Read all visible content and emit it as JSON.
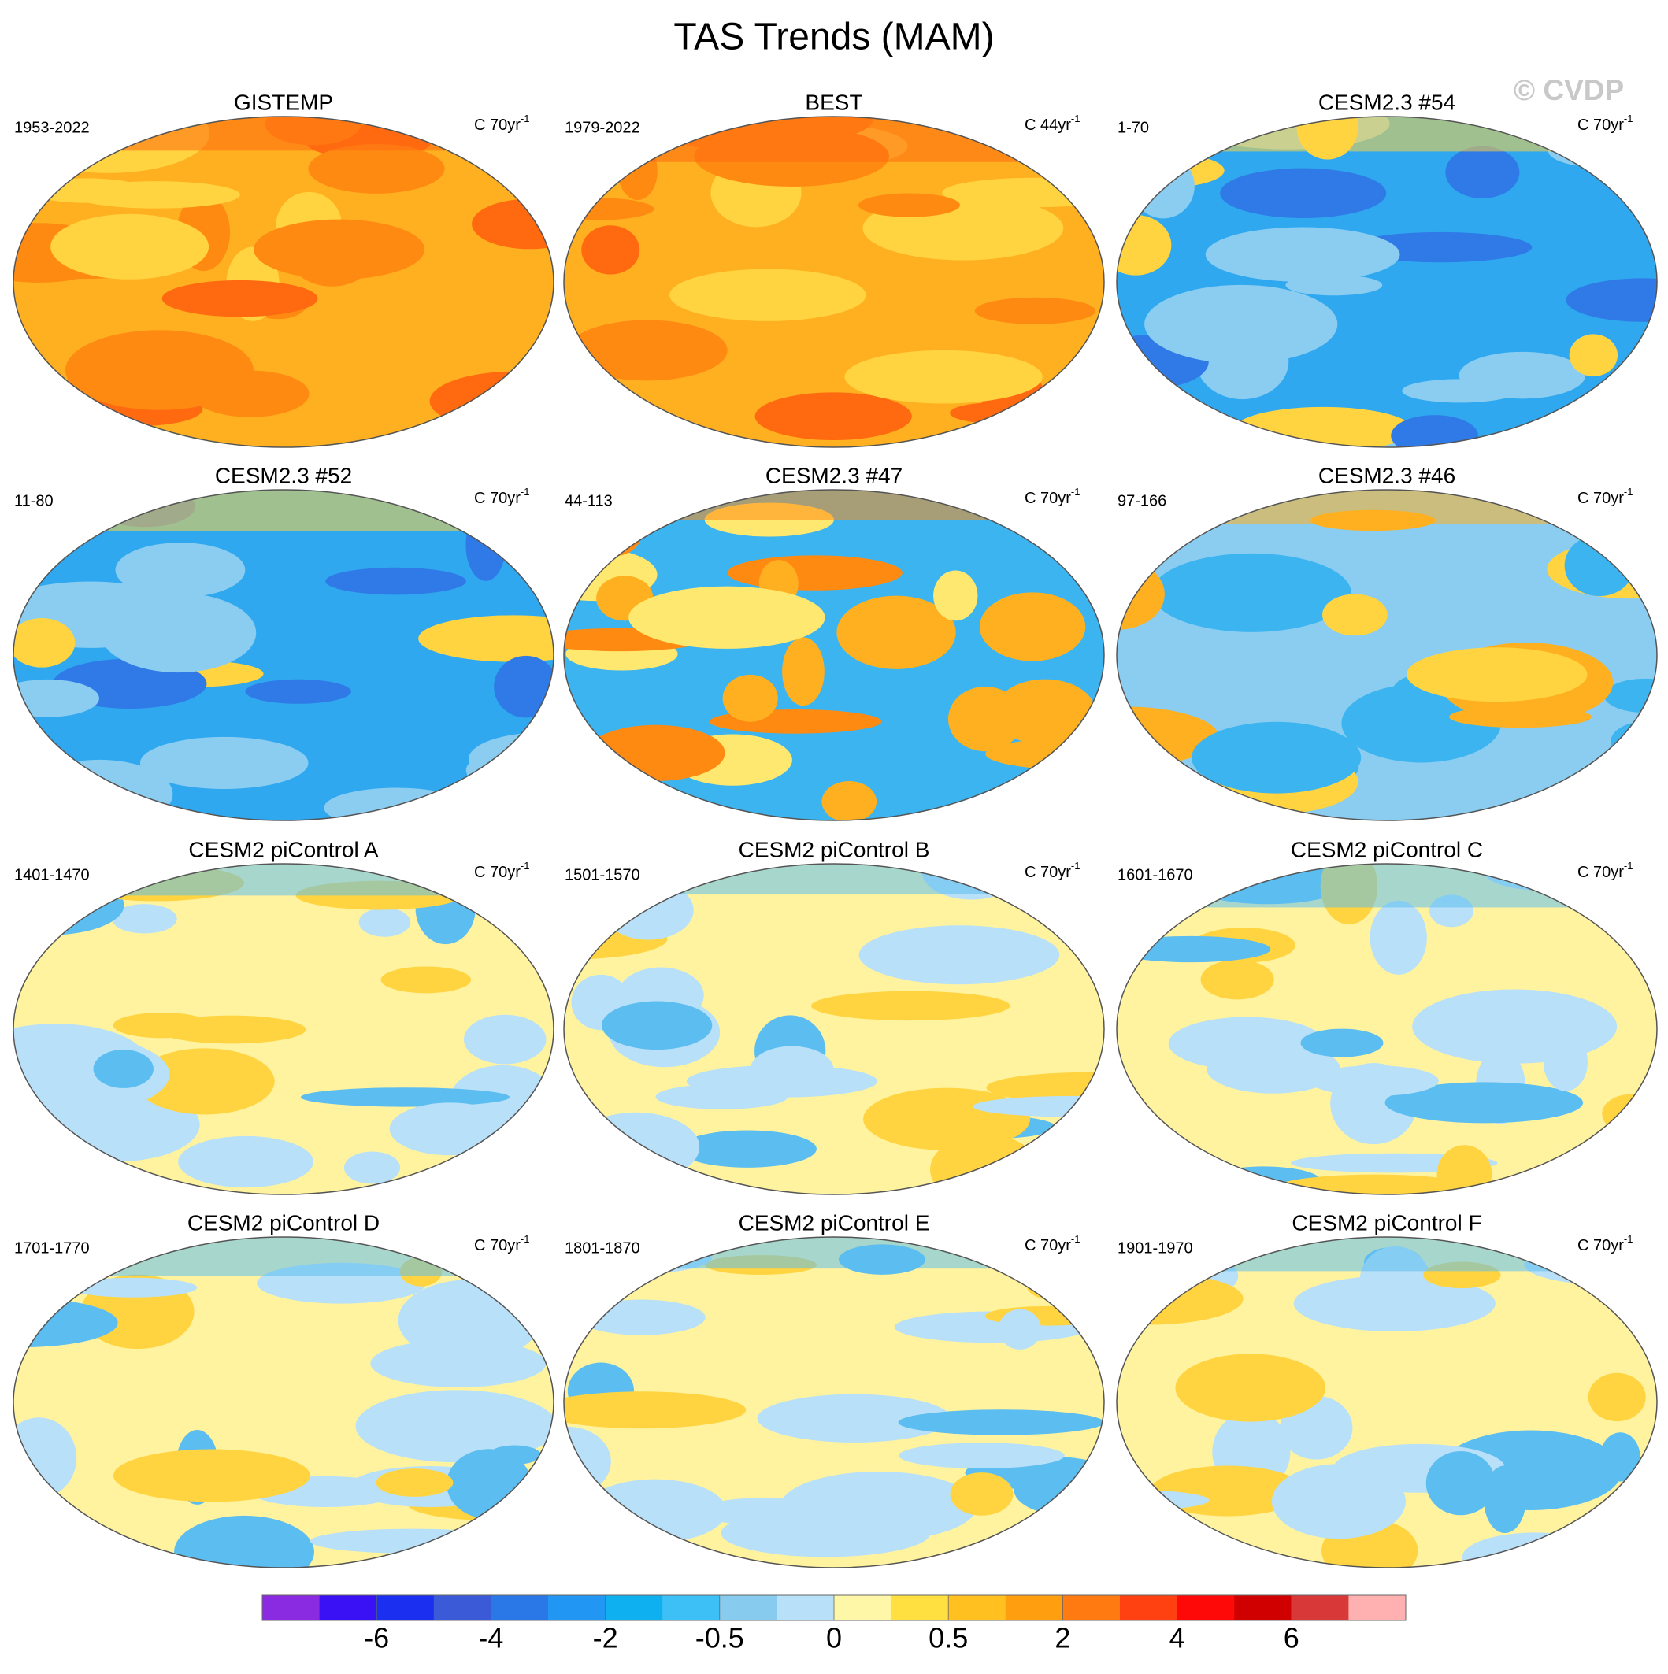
{
  "title": "TAS Trends (MAM)",
  "watermark": "© CVDP",
  "panels": [
    {
      "title": "GISTEMP",
      "period": "1953-2022",
      "units": "C 70yr",
      "units_exp": "-1"
    },
    {
      "title": "BEST",
      "period": "1979-2022",
      "units": "C 44yr",
      "units_exp": "-1"
    },
    {
      "title": "CESM2.3 #54",
      "period": "1-70",
      "units": "C 70yr",
      "units_exp": "-1"
    },
    {
      "title": "CESM2.3 #52",
      "period": "11-80",
      "units": "C 70yr",
      "units_exp": "-1"
    },
    {
      "title": "CESM2.3 #47",
      "period": "44-113",
      "units": "C 70yr",
      "units_exp": "-1"
    },
    {
      "title": "CESM2.3 #46",
      "period": "97-166",
      "units": "C 70yr",
      "units_exp": "-1"
    },
    {
      "title": "CESM2 piControl A",
      "period": "1401-1470",
      "units": "C 70yr",
      "units_exp": "-1"
    },
    {
      "title": "CESM2 piControl B",
      "period": "1501-1570",
      "units": "C 70yr",
      "units_exp": "-1"
    },
    {
      "title": "CESM2 piControl C",
      "period": "1601-1670",
      "units": "C 70yr",
      "units_exp": "-1"
    },
    {
      "title": "CESM2 piControl D",
      "period": "1701-1770",
      "units": "C 70yr",
      "units_exp": "-1"
    },
    {
      "title": "CESM2 piControl E",
      "period": "1801-1870",
      "units": "C 70yr",
      "units_exp": "-1"
    },
    {
      "title": "CESM2 piControl F",
      "period": "1901-1970",
      "units": "C 70yr",
      "units_exp": "-1"
    }
  ],
  "colorbar": {
    "colors": [
      "#8a2be2",
      "#3a10f5",
      "#1a2ff0",
      "#3a5ad8",
      "#2a78e8",
      "#2196f3",
      "#0fb0f0",
      "#3cc0f5",
      "#87ccee",
      "#b8e0f8",
      "#fff7a8",
      "#ffe040",
      "#ffc020",
      "#ff9f10",
      "#ff7a10",
      "#ff4010",
      "#ff0808",
      "#d00000",
      "#d83838",
      "#ffb0b0"
    ],
    "ticks": [
      -6,
      -4,
      -2,
      -0.5,
      0,
      0.5,
      2,
      4,
      6
    ]
  }
}
